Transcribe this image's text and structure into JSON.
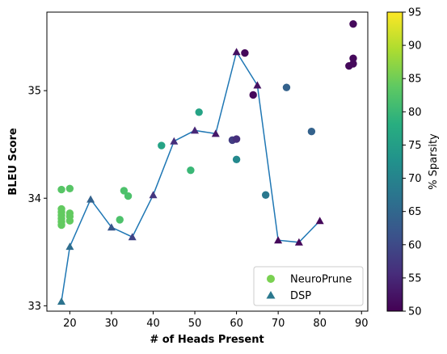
{
  "chart_data": {
    "type": "scatter",
    "xlabel": "# of Heads Present",
    "ylabel": "BLEU Score",
    "xlim": [
      14.5,
      91.5
    ],
    "ylim": [
      32.95,
      35.73
    ],
    "x_ticks": [
      20,
      30,
      40,
      50,
      60,
      70,
      80,
      90
    ],
    "y_ticks": [
      33,
      34,
      35
    ],
    "colorbar": {
      "label": "% Sparsity",
      "range": [
        50,
        95
      ],
      "ticks": [
        50,
        55,
        60,
        65,
        70,
        75,
        80,
        85,
        90,
        95
      ],
      "colormap": "viridis"
    },
    "legend": {
      "placement": "lower right",
      "entries": [
        {
          "label": "NeuroPrune",
          "marker": "circle",
          "color": "#7ad151"
        },
        {
          "label": "DSP",
          "marker": "triangle",
          "color": "#2a788e"
        }
      ]
    },
    "series": [
      {
        "name": "NeuroPrune",
        "marker": "circle",
        "points": [
          {
            "x": 18,
            "y": 34.08,
            "c": 83
          },
          {
            "x": 20,
            "y": 34.09,
            "c": 83
          },
          {
            "x": 18,
            "y": 33.9,
            "c": 84
          },
          {
            "x": 18,
            "y": 33.87,
            "c": 84
          },
          {
            "x": 18,
            "y": 33.84,
            "c": 84
          },
          {
            "x": 18,
            "y": 33.81,
            "c": 84
          },
          {
            "x": 18,
            "y": 33.78,
            "c": 84
          },
          {
            "x": 18,
            "y": 33.75,
            "c": 84
          },
          {
            "x": 20,
            "y": 33.86,
            "c": 84
          },
          {
            "x": 20,
            "y": 33.83,
            "c": 84
          },
          {
            "x": 20,
            "y": 33.79,
            "c": 84
          },
          {
            "x": 32,
            "y": 33.8,
            "c": 82
          },
          {
            "x": 33,
            "y": 34.07,
            "c": 82
          },
          {
            "x": 34,
            "y": 34.02,
            "c": 82
          },
          {
            "x": 42,
            "y": 34.49,
            "c": 76
          },
          {
            "x": 49,
            "y": 34.26,
            "c": 80
          },
          {
            "x": 51,
            "y": 34.8,
            "c": 76
          },
          {
            "x": 59,
            "y": 34.54,
            "c": 58
          },
          {
            "x": 60,
            "y": 34.55,
            "c": 56
          },
          {
            "x": 60,
            "y": 34.36,
            "c": 71
          },
          {
            "x": 62,
            "y": 35.35,
            "c": 51
          },
          {
            "x": 64,
            "y": 34.96,
            "c": 51
          },
          {
            "x": 67,
            "y": 34.03,
            "c": 68
          },
          {
            "x": 72,
            "y": 35.03,
            "c": 64
          },
          {
            "x": 78,
            "y": 34.62,
            "c": 64
          },
          {
            "x": 87,
            "y": 35.23,
            "c": 51
          },
          {
            "x": 88,
            "y": 35.25,
            "c": 51
          },
          {
            "x": 88,
            "y": 35.3,
            "c": 51
          },
          {
            "x": 88,
            "y": 35.62,
            "c": 51
          }
        ]
      },
      {
        "name": "DSP",
        "marker": "triangle",
        "line_color": "#1f77b4",
        "points": [
          {
            "x": 18,
            "y": 33.04,
            "c": 67
          },
          {
            "x": 20,
            "y": 33.55,
            "c": 66
          },
          {
            "x": 25,
            "y": 33.99,
            "c": 64
          },
          {
            "x": 30,
            "y": 33.73,
            "c": 62
          },
          {
            "x": 35,
            "y": 33.64,
            "c": 59
          },
          {
            "x": 40,
            "y": 34.03,
            "c": 57
          },
          {
            "x": 45,
            "y": 34.53,
            "c": 56
          },
          {
            "x": 50,
            "y": 34.63,
            "c": 55
          },
          {
            "x": 55,
            "y": 34.6,
            "c": 53
          },
          {
            "x": 60,
            "y": 35.36,
            "c": 52
          },
          {
            "x": 65,
            "y": 35.05,
            "c": 52
          },
          {
            "x": 70,
            "y": 33.61,
            "c": 51
          },
          {
            "x": 75,
            "y": 33.59,
            "c": 51
          },
          {
            "x": 80,
            "y": 33.79,
            "c": 51
          }
        ]
      }
    ]
  }
}
